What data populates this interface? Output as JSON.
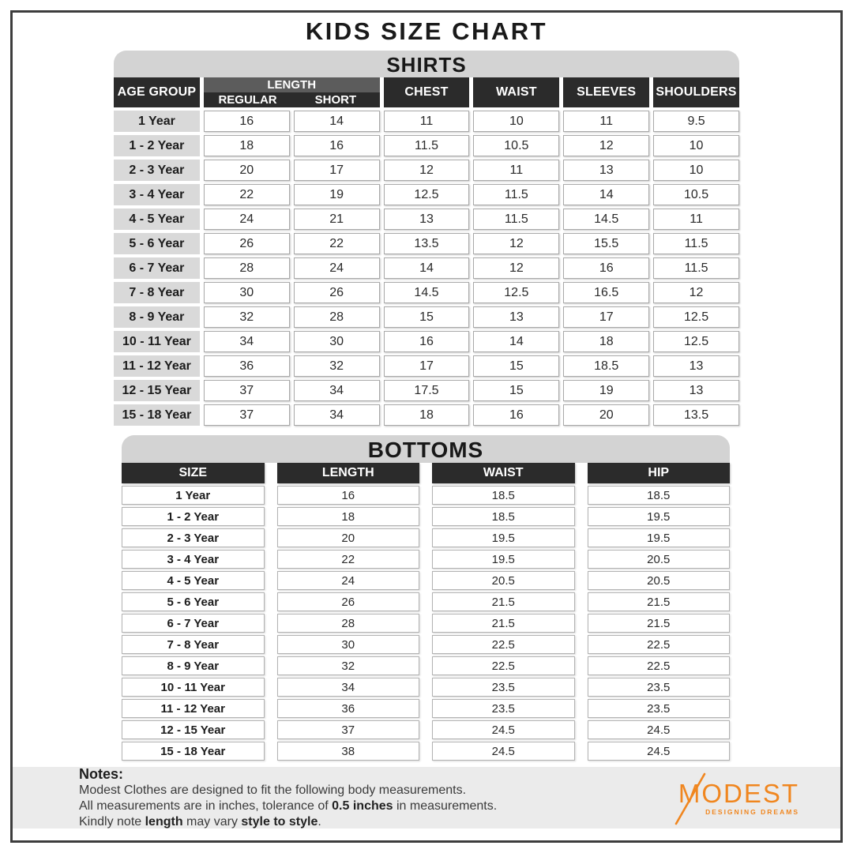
{
  "title": "KIDS SIZE CHART",
  "chart_data": [
    {
      "type": "table",
      "title": "SHIRTS",
      "length_group_label": "LENGTH",
      "columns": [
        "AGE GROUP",
        "REGULAR",
        "SHORT",
        "CHEST",
        "WAIST",
        "SLEEVES",
        "SHOULDERS"
      ],
      "note": "REGULAR and SHORT are sub-columns of LENGTH",
      "rows": [
        [
          "1 Year",
          "16",
          "14",
          "11",
          "10",
          "11",
          "9.5"
        ],
        [
          "1 - 2 Year",
          "18",
          "16",
          "11.5",
          "10.5",
          "12",
          "10"
        ],
        [
          "2 - 3 Year",
          "20",
          "17",
          "12",
          "11",
          "13",
          "10"
        ],
        [
          "3 - 4 Year",
          "22",
          "19",
          "12.5",
          "11.5",
          "14",
          "10.5"
        ],
        [
          "4 - 5 Year",
          "24",
          "21",
          "13",
          "11.5",
          "14.5",
          "11"
        ],
        [
          "5 - 6 Year",
          "26",
          "22",
          "13.5",
          "12",
          "15.5",
          "11.5"
        ],
        [
          "6 - 7 Year",
          "28",
          "24",
          "14",
          "12",
          "16",
          "11.5"
        ],
        [
          "7 - 8 Year",
          "30",
          "26",
          "14.5",
          "12.5",
          "16.5",
          "12"
        ],
        [
          "8 - 9 Year",
          "32",
          "28",
          "15",
          "13",
          "17",
          "12.5"
        ],
        [
          "10 - 11 Year",
          "34",
          "30",
          "16",
          "14",
          "18",
          "12.5"
        ],
        [
          "11 - 12 Year",
          "36",
          "32",
          "17",
          "15",
          "18.5",
          "13"
        ],
        [
          "12 - 15 Year",
          "37",
          "34",
          "17.5",
          "15",
          "19",
          "13"
        ],
        [
          "15 - 18 Year",
          "37",
          "34",
          "18",
          "16",
          "20",
          "13.5"
        ]
      ]
    },
    {
      "type": "table",
      "title": "BOTTOMS",
      "columns": [
        "SIZE",
        "LENGTH",
        "WAIST",
        "HIP"
      ],
      "rows": [
        [
          "1 Year",
          "16",
          "18.5",
          "18.5"
        ],
        [
          "1 - 2 Year",
          "18",
          "18.5",
          "19.5"
        ],
        [
          "2 - 3 Year",
          "20",
          "19.5",
          "19.5"
        ],
        [
          "3 - 4 Year",
          "22",
          "19.5",
          "20.5"
        ],
        [
          "4 - 5 Year",
          "24",
          "20.5",
          "20.5"
        ],
        [
          "5 - 6 Year",
          "26",
          "21.5",
          "21.5"
        ],
        [
          "6 - 7 Year",
          "28",
          "21.5",
          "21.5"
        ],
        [
          "7 - 8 Year",
          "30",
          "22.5",
          "22.5"
        ],
        [
          "8 - 9 Year",
          "32",
          "22.5",
          "22.5"
        ],
        [
          "10 - 11 Year",
          "34",
          "23.5",
          "23.5"
        ],
        [
          "11 - 12 Year",
          "36",
          "23.5",
          "23.5"
        ],
        [
          "12 - 15 Year",
          "37",
          "24.5",
          "24.5"
        ],
        [
          "15 - 18 Year",
          "38",
          "24.5",
          "24.5"
        ]
      ]
    }
  ],
  "notes": {
    "heading": "Notes:",
    "lines": [
      [
        {
          "t": "Modest Clothes are designed to fit the following body measurements.",
          "b": false
        }
      ],
      [
        {
          "t": "All measurements are in inches, tolerance of ",
          "b": false
        },
        {
          "t": "0.5 inches",
          "b": true
        },
        {
          "t": " in measurements.",
          "b": false
        }
      ],
      [
        {
          "t": "Kindly note ",
          "b": false
        },
        {
          "t": "length",
          "b": true
        },
        {
          "t": " may vary ",
          "b": false
        },
        {
          "t": "style to style",
          "b": true
        },
        {
          "t": ".",
          "b": false
        }
      ]
    ]
  },
  "logo": {
    "name": "MODEST",
    "tagline": "DESIGNING DREAMS",
    "color": "#f0861f"
  },
  "colors": {
    "header_dark": "#2b2b2b",
    "length_band": "#5c5c5c",
    "section_bar": "#d3d3d3",
    "age_cell": "#d9d9d9",
    "notes_bar": "#ebebeb",
    "frame_border": "#3d3d3d",
    "brand_accent": "#f0861f"
  }
}
